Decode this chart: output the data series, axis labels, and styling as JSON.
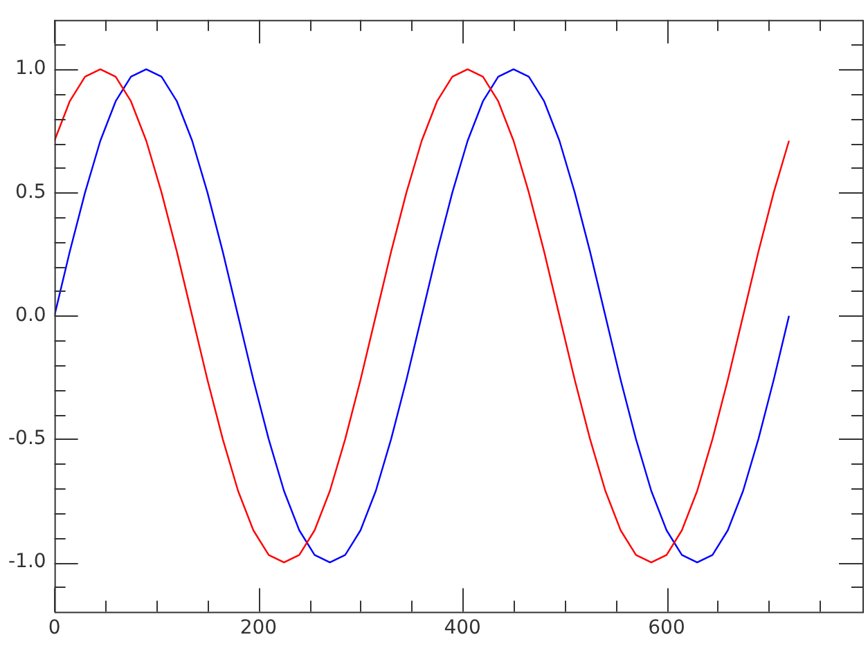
{
  "chart_data": {
    "type": "line",
    "x": [
      0,
      15,
      30,
      45,
      60,
      75,
      90,
      105,
      120,
      135,
      150,
      165,
      180,
      195,
      210,
      225,
      240,
      255,
      270,
      285,
      300,
      315,
      330,
      345,
      360,
      375,
      390,
      405,
      420,
      435,
      450,
      465,
      480,
      495,
      510,
      525,
      540,
      555,
      570,
      585,
      600,
      615,
      630,
      645,
      660,
      675,
      690,
      705,
      720
    ],
    "series": [
      {
        "color": "#ff0000",
        "values": [
          0.71,
          0.87,
          0.97,
          1,
          0.97,
          0.87,
          0.71,
          0.5,
          0.26,
          0,
          -0.26,
          -0.5,
          -0.71,
          -0.87,
          -0.97,
          -1,
          -0.97,
          -0.87,
          -0.71,
          -0.5,
          -0.26,
          0,
          0.26,
          0.5,
          0.71,
          0.87,
          0.97,
          1,
          0.97,
          0.87,
          0.71,
          0.5,
          0.26,
          0,
          -0.26,
          -0.5,
          -0.71,
          -0.87,
          -0.97,
          -1,
          -0.97,
          -0.87,
          -0.71,
          -0.5,
          -0.26,
          0,
          0.26,
          0.5,
          0.71
        ]
      },
      {
        "color": "#0000ff",
        "values": [
          0,
          0.26,
          0.5,
          0.71,
          0.87,
          0.97,
          1,
          0.97,
          0.87,
          0.71,
          0.5,
          0.26,
          0,
          -0.26,
          -0.5,
          -0.71,
          -0.87,
          -0.97,
          -1,
          -0.97,
          -0.87,
          -0.71,
          -0.5,
          -0.26,
          0,
          0.26,
          0.5,
          0.71,
          0.87,
          0.97,
          1,
          0.97,
          0.87,
          0.71,
          0.5,
          0.26,
          0,
          -0.26,
          -0.5,
          -0.71,
          -0.87,
          -0.97,
          -1,
          -0.97,
          -0.87,
          -0.71,
          -0.5,
          -0.26,
          0
        ]
      }
    ],
    "xlim": [
      0,
      792
    ],
    "xticks": [
      0,
      {
        "value": 50,
        "label": null
      },
      {
        "value": 100,
        "label": null
      },
      {
        "value": 150,
        "label": null
      },
      200,
      {
        "value": 250,
        "label": null
      },
      {
        "value": 300,
        "label": null
      },
      {
        "value": 350,
        "label": null
      },
      400,
      {
        "value": 450,
        "label": null
      },
      {
        "value": 500,
        "label": null
      },
      {
        "value": 550,
        "label": null
      },
      600,
      {
        "value": 650,
        "label": null
      },
      {
        "value": 700,
        "label": null
      },
      {
        "value": 750,
        "label": null
      }
    ],
    "ylim": [
      -1.2,
      1.2
    ],
    "yticks": [
      {
        "value": -1.1,
        "label": null
      },
      {
        "value": -1,
        "label": "-1.0"
      },
      {
        "value": -0.9,
        "label": null
      },
      {
        "value": -0.8,
        "label": null
      },
      {
        "value": -0.7,
        "label": null
      },
      {
        "value": -0.6,
        "label": null
      },
      {
        "value": -0.5,
        "label": "-0.5"
      },
      {
        "value": -0.4,
        "label": null
      },
      {
        "value": -0.3,
        "label": null
      },
      {
        "value": -0.2,
        "label": null
      },
      {
        "value": -0.1,
        "label": null
      },
      {
        "value": 0,
        "label": "0.0"
      },
      {
        "value": 0.1,
        "label": null
      },
      {
        "value": 0.2,
        "label": null
      },
      {
        "value": 0.3,
        "label": null
      },
      {
        "value": 0.4,
        "label": null
      },
      {
        "value": 0.5,
        "label": "0.5"
      },
      {
        "value": 0.6,
        "label": null
      },
      {
        "value": 0.7,
        "label": null
      },
      {
        "value": 0.8,
        "label": null
      },
      {
        "value": 0.9,
        "label": null
      },
      {
        "value": 1,
        "label": "1.0"
      },
      {
        "value": 1.1,
        "label": null
      }
    ],
    "grid": false,
    "legend": false,
    "marker": "none",
    "line_style": "solid"
  }
}
